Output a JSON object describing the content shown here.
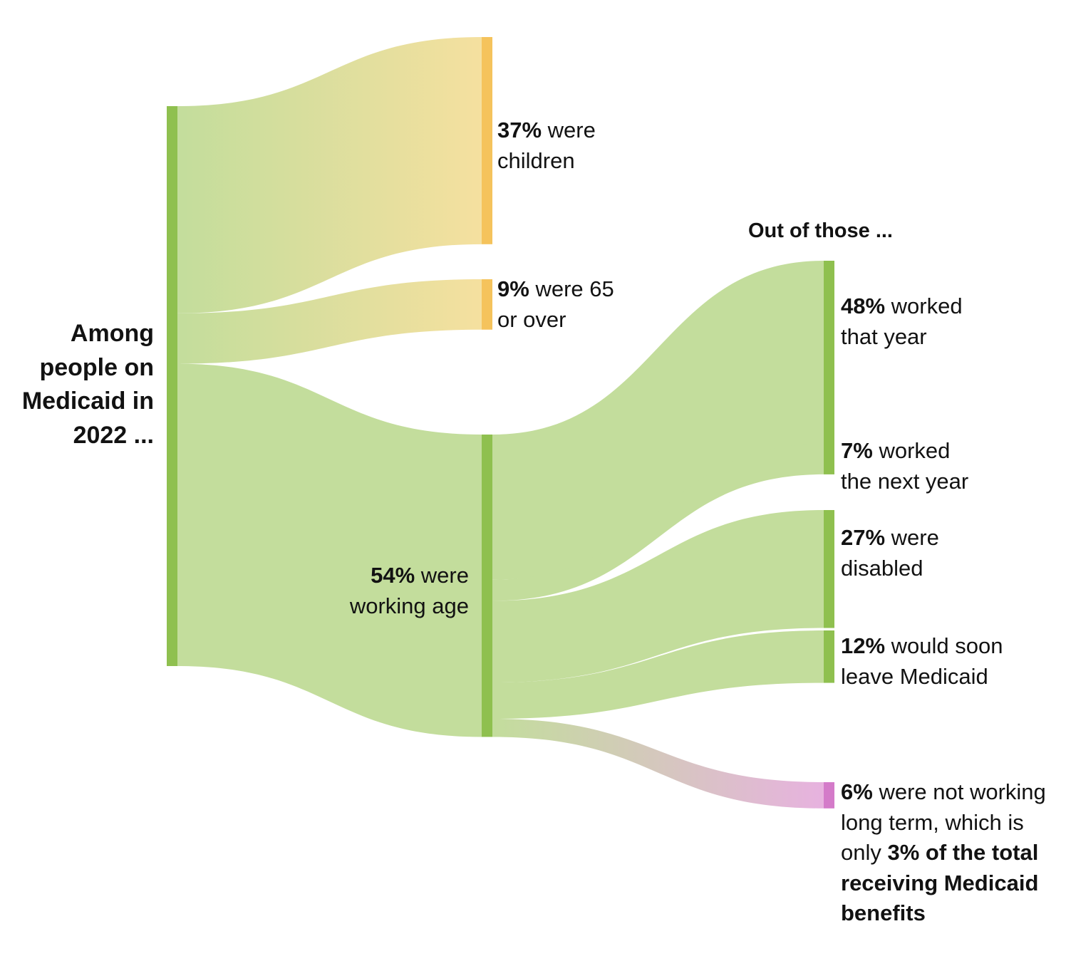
{
  "chart_data": {
    "type": "sankey",
    "root": {
      "label": "Among people on Medicaid in 2022 ...",
      "color": "#8fc04f"
    },
    "level1": [
      {
        "key": "children",
        "value": 37,
        "pct": "37%",
        "text": "were children",
        "color": "#f5c35c",
        "flow_start": "#c3dd9c",
        "flow_end": "#f5e09f"
      },
      {
        "key": "seniors",
        "value": 9,
        "pct": "9%",
        "text": "were 65 or over",
        "color": "#f5c35c",
        "flow_start": "#c3dd9c",
        "flow_end": "#f5e09f"
      },
      {
        "key": "working_age",
        "value": 54,
        "pct": "54%",
        "text": "were working age",
        "color": "#8fc04f",
        "flow_start": "#c3dd9c",
        "flow_end": "#c3dd9c"
      }
    ],
    "level2_header": "Out of those ...",
    "level2": [
      {
        "key": "worked",
        "value": 48,
        "pct": "48%",
        "text": "worked that year",
        "color": "#8fc04f",
        "flow_color": "#c3dd9c"
      },
      {
        "key": "worked_next",
        "value": 7,
        "pct": "7%",
        "text": "worked the next year",
        "color": "#8fc04f",
        "flow_color": "#c3dd9c"
      },
      {
        "key": "disabled",
        "value": 27,
        "pct": "27%",
        "text": "were disabled",
        "color": "#8fc04f",
        "flow_color": "#c3dd9c"
      },
      {
        "key": "leave",
        "value": 12,
        "pct": "12%",
        "text": "would soon leave Medicaid",
        "color": "#8fc04f",
        "flow_color": "#c3dd9c"
      },
      {
        "key": "not_working",
        "value": 6,
        "pct": "6%",
        "text_a": "were not working long term, which is only",
        "text_b": "3% of the total receiving Medicaid benefits",
        "color": "#d47bc9",
        "flow_start": "#c3dd9c",
        "flow_end": "#e7b2df"
      }
    ]
  }
}
